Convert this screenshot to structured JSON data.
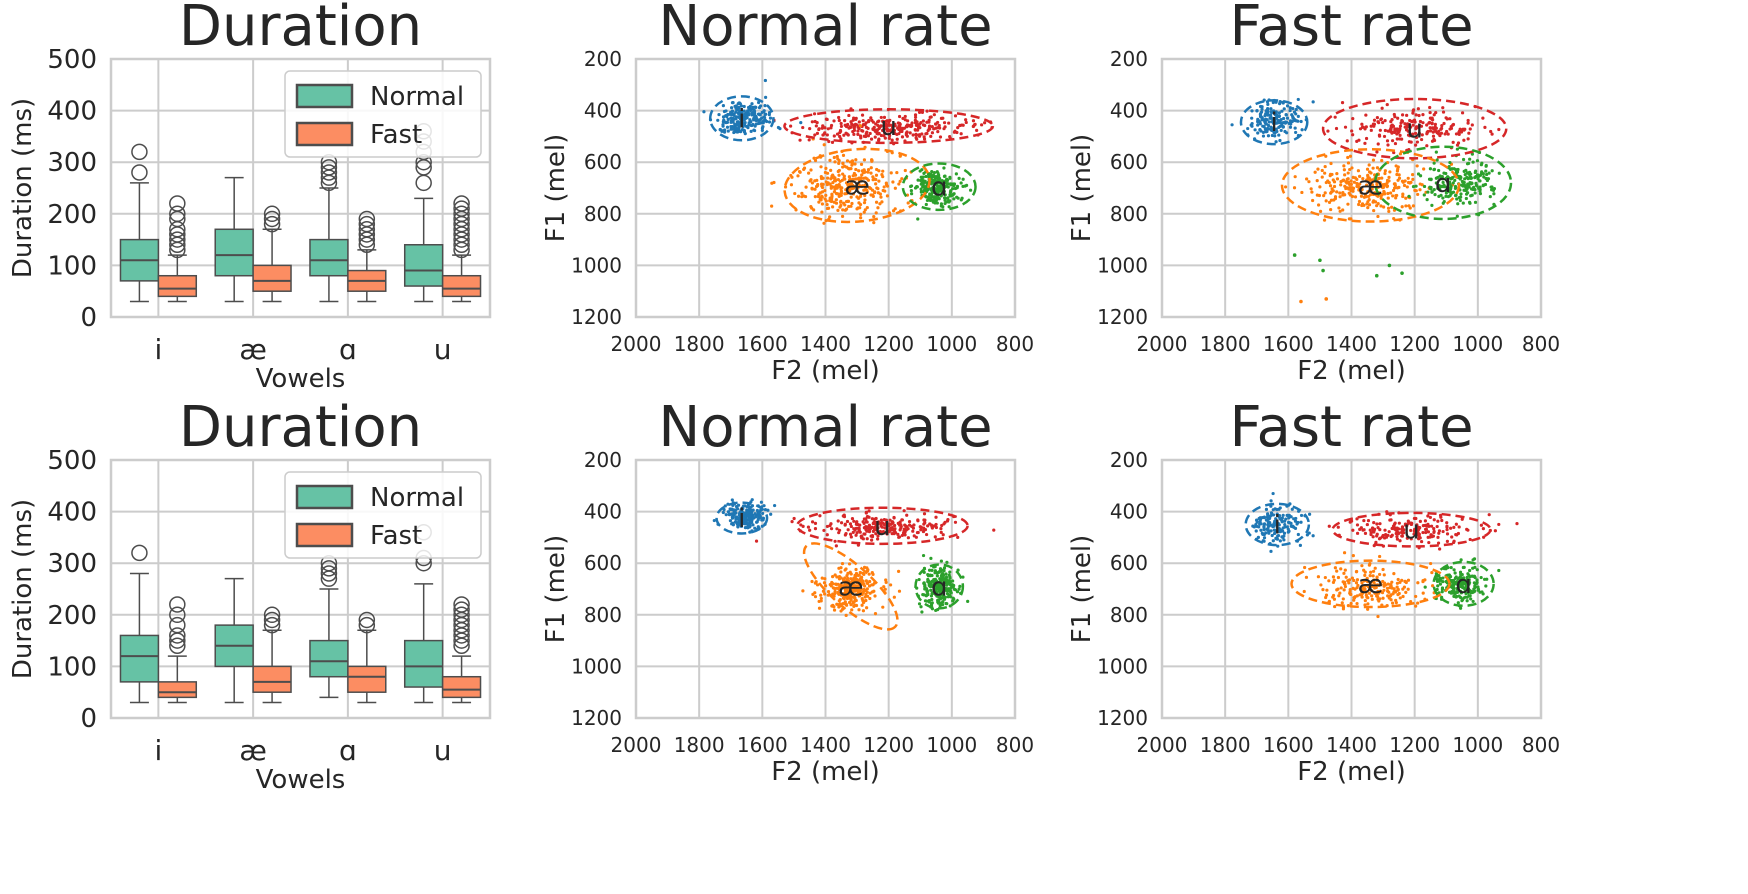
{
  "colors": {
    "normal_box": "#66c2a5",
    "fast_box": "#fc8d62",
    "vowel_i": "#1f77b4",
    "vowel_ae": "#ff7f0e",
    "vowel_a": "#2ca02c",
    "vowel_u": "#d62728",
    "grid": "#cccccc",
    "text": "#262626"
  },
  "chart_data": [
    {
      "type": "box",
      "title": "Duration",
      "xlabel": "Vowels",
      "ylabel": "Duration (ms)",
      "ylim": [
        0,
        500
      ],
      "yticks": [
        "0",
        "100",
        "200",
        "300",
        "400",
        "500"
      ],
      "categories": [
        "i",
        "æ",
        "ɑ",
        "u"
      ],
      "legend": {
        "placement": "top-right",
        "entries": [
          "Normal",
          "Fast"
        ]
      },
      "grid": true,
      "series": [
        {
          "name": "Normal",
          "boxes": [
            {
              "whislo": 30,
              "q1": 70,
              "med": 110,
              "q3": 150,
              "whishi": 260,
              "fliers": [
                280,
                320
              ]
            },
            {
              "whislo": 30,
              "q1": 80,
              "med": 120,
              "q3": 170,
              "whishi": 270,
              "fliers": []
            },
            {
              "whislo": 30,
              "q1": 80,
              "med": 110,
              "q3": 150,
              "whishi": 250,
              "fliers": [
                260,
                270,
                280,
                290,
                300
              ]
            },
            {
              "whislo": 30,
              "q1": 60,
              "med": 90,
              "q3": 140,
              "whishi": 230,
              "fliers": [
                260,
                290,
                300,
                320,
                340,
                360
              ]
            }
          ]
        },
        {
          "name": "Fast",
          "boxes": [
            {
              "whislo": 30,
              "q1": 40,
              "med": 55,
              "q3": 80,
              "whishi": 120,
              "fliers": [
                130,
                140,
                150,
                160,
                170,
                190,
                200,
                220
              ]
            },
            {
              "whislo": 30,
              "q1": 50,
              "med": 70,
              "q3": 100,
              "whishi": 170,
              "fliers": [
                180,
                190,
                200
              ]
            },
            {
              "whislo": 30,
              "q1": 50,
              "med": 70,
              "q3": 90,
              "whishi": 130,
              "fliers": [
                140,
                150,
                160,
                170,
                180,
                190
              ]
            },
            {
              "whislo": 30,
              "q1": 40,
              "med": 55,
              "q3": 80,
              "whishi": 120,
              "fliers": [
                130,
                140,
                150,
                160,
                170,
                180,
                190,
                200,
                210,
                220
              ]
            }
          ]
        }
      ]
    },
    {
      "type": "scatter",
      "title": "Normal rate",
      "xlabel": "F2 (mel)",
      "ylabel": "F1 (mel)",
      "xlim": [
        2000,
        800
      ],
      "ylim": [
        1200,
        200
      ],
      "xticks": [
        "2000",
        "1800",
        "1600",
        "1400",
        "1200",
        "1000",
        "800"
      ],
      "yticks": [
        "200",
        "400",
        "600",
        "800",
        "1000",
        "1200"
      ],
      "grid": true,
      "clusters": [
        {
          "label": "i",
          "color": "#1f77b4",
          "center": [
            1660,
            430
          ],
          "spread": [
            45,
            35
          ],
          "count": 220,
          "ellipse": {
            "cx": 1665,
            "cy": 430,
            "rx": 100,
            "ry": 85,
            "angle": 0
          }
        },
        {
          "label": "u",
          "color": "#d62728",
          "center": [
            1200,
            465
          ],
          "spread": [
            130,
            25
          ],
          "count": 300,
          "ellipse": {
            "cx": 1200,
            "cy": 460,
            "rx": 330,
            "ry": 65,
            "angle": 0
          }
        },
        {
          "label": "æ",
          "color": "#ff7f0e",
          "center": [
            1330,
            690
          ],
          "spread": [
            80,
            60
          ],
          "count": 330,
          "ellipse": {
            "cx": 1300,
            "cy": 690,
            "rx": 230,
            "ry": 140,
            "angle": -5
          }
        },
        {
          "label": "ɑ",
          "color": "#2ca02c",
          "center": [
            1050,
            700
          ],
          "spread": [
            35,
            35
          ],
          "count": 250,
          "ellipse": {
            "cx": 1040,
            "cy": 695,
            "rx": 115,
            "ry": 90,
            "angle": 0
          }
        }
      ]
    },
    {
      "type": "scatter",
      "title": "Fast rate",
      "xlabel": "F2 (mel)",
      "ylabel": "F1 (mel)",
      "xlim": [
        2000,
        800
      ],
      "ylim": [
        1200,
        200
      ],
      "xticks": [
        "2000",
        "1800",
        "1600",
        "1400",
        "1200",
        "1000",
        "800"
      ],
      "yticks": [
        "200",
        "400",
        "600",
        "800",
        "1000",
        "1200"
      ],
      "grid": true,
      "clusters": [
        {
          "label": "i",
          "color": "#1f77b4",
          "center": [
            1650,
            440
          ],
          "spread": [
            40,
            35
          ],
          "count": 180,
          "ellipse": {
            "cx": 1645,
            "cy": 445,
            "rx": 105,
            "ry": 85,
            "angle": 0
          }
        },
        {
          "label": "u",
          "color": "#d62728",
          "center": [
            1200,
            470
          ],
          "spread": [
            110,
            35
          ],
          "count": 220,
          "ellipse": {
            "cx": 1200,
            "cy": 470,
            "rx": 290,
            "ry": 115,
            "angle": 0
          }
        },
        {
          "label": "æ",
          "color": "#ff7f0e",
          "center": [
            1350,
            700
          ],
          "spread": [
            90,
            50
          ],
          "count": 280,
          "ellipse": {
            "cx": 1340,
            "cy": 690,
            "rx": 280,
            "ry": 140,
            "angle": 0
          }
        },
        {
          "label": "ɑ",
          "color": "#2ca02c",
          "center": [
            1060,
            680
          ],
          "spread": [
            55,
            45
          ],
          "count": 230,
          "ellipse": {
            "cx": 1110,
            "cy": 680,
            "rx": 215,
            "ry": 140,
            "angle": 0
          }
        }
      ],
      "outliers": [
        {
          "color": "#2ca02c",
          "points": [
            [
              1500,
              980
            ],
            [
              1490,
              1020
            ],
            [
              1580,
              960
            ],
            [
              1280,
              1000
            ],
            [
              1240,
              1030
            ],
            [
              1320,
              1040
            ]
          ]
        },
        {
          "color": "#ff7f0e",
          "points": [
            [
              1560,
              1140
            ],
            [
              1480,
              1130
            ]
          ]
        }
      ]
    },
    {
      "type": "box",
      "title": "Duration",
      "xlabel": "Vowels",
      "ylabel": "Duration (ms)",
      "ylim": [
        0,
        500
      ],
      "yticks": [
        "0",
        "100",
        "200",
        "300",
        "400",
        "500"
      ],
      "categories": [
        "i",
        "æ",
        "ɑ",
        "u"
      ],
      "legend": {
        "placement": "top-right",
        "entries": [
          "Normal",
          "Fast"
        ]
      },
      "grid": true,
      "series": [
        {
          "name": "Normal",
          "boxes": [
            {
              "whislo": 30,
              "q1": 70,
              "med": 120,
              "q3": 160,
              "whishi": 280,
              "fliers": [
                320
              ]
            },
            {
              "whislo": 30,
              "q1": 100,
              "med": 140,
              "q3": 180,
              "whishi": 270,
              "fliers": []
            },
            {
              "whislo": 40,
              "q1": 80,
              "med": 110,
              "q3": 150,
              "whishi": 250,
              "fliers": [
                270,
                280,
                290,
                300
              ]
            },
            {
              "whislo": 30,
              "q1": 60,
              "med": 100,
              "q3": 150,
              "whishi": 260,
              "fliers": [
                300,
                310,
                360
              ]
            }
          ]
        },
        {
          "name": "Fast",
          "boxes": [
            {
              "whislo": 30,
              "q1": 40,
              "med": 50,
              "q3": 70,
              "whishi": 120,
              "fliers": [
                140,
                150,
                160,
                180,
                200,
                220
              ]
            },
            {
              "whislo": 30,
              "q1": 50,
              "med": 70,
              "q3": 100,
              "whishi": 170,
              "fliers": [
                180,
                190,
                200
              ]
            },
            {
              "whislo": 30,
              "q1": 50,
              "med": 80,
              "q3": 100,
              "whishi": 170,
              "fliers": [
                180,
                190
              ]
            },
            {
              "whislo": 30,
              "q1": 40,
              "med": 55,
              "q3": 80,
              "whishi": 120,
              "fliers": [
                140,
                150,
                160,
                170,
                180,
                190,
                200,
                210,
                220
              ]
            }
          ]
        }
      ]
    },
    {
      "type": "scatter",
      "title": "Normal rate",
      "xlabel": "F2 (mel)",
      "ylabel": "F1 (mel)",
      "xlim": [
        2000,
        800
      ],
      "ylim": [
        1200,
        200
      ],
      "xticks": [
        "2000",
        "1800",
        "1600",
        "1400",
        "1200",
        "1000",
        "800"
      ],
      "yticks": [
        "200",
        "400",
        "600",
        "800",
        "1000",
        "1200"
      ],
      "grid": true,
      "clusters": [
        {
          "label": "i",
          "color": "#1f77b4",
          "center": [
            1655,
            420
          ],
          "spread": [
            35,
            25
          ],
          "count": 200,
          "ellipse": {
            "cx": 1665,
            "cy": 425,
            "rx": 80,
            "ry": 60,
            "angle": 0
          }
        },
        {
          "label": "u",
          "color": "#d62728",
          "center": [
            1220,
            460
          ],
          "spread": [
            110,
            25
          ],
          "count": 240,
          "ellipse": {
            "cx": 1220,
            "cy": 455,
            "rx": 270,
            "ry": 70,
            "angle": 0
          }
        },
        {
          "label": "æ",
          "color": "#ff7f0e",
          "center": [
            1320,
            700
          ],
          "spread": [
            50,
            40
          ],
          "count": 280,
          "ellipse": {
            "cx": 1320,
            "cy": 690,
            "rx": 190,
            "ry": 80,
            "angle": 42
          }
        },
        {
          "label": "ɑ",
          "color": "#2ca02c",
          "center": [
            1040,
            690
          ],
          "spread": [
            30,
            35
          ],
          "count": 240,
          "ellipse": {
            "cx": 1040,
            "cy": 690,
            "rx": 75,
            "ry": 85,
            "angle": 0
          }
        }
      ]
    },
    {
      "type": "scatter",
      "title": "Fast rate",
      "xlabel": "F2 (mel)",
      "ylabel": "F1 (mel)",
      "xlim": [
        2000,
        800
      ],
      "ylim": [
        1200,
        200
      ],
      "xticks": [
        "2000",
        "1800",
        "1600",
        "1400",
        "1200",
        "1000",
        "800"
      ],
      "yticks": [
        "200",
        "400",
        "600",
        "800",
        "1000",
        "1200"
      ],
      "grid": true,
      "clusters": [
        {
          "label": "i",
          "color": "#1f77b4",
          "center": [
            1640,
            450
          ],
          "spread": [
            40,
            35
          ],
          "count": 160,
          "ellipse": {
            "cx": 1635,
            "cy": 450,
            "rx": 100,
            "ry": 80,
            "angle": 0
          }
        },
        {
          "label": "u",
          "color": "#d62728",
          "center": [
            1210,
            470
          ],
          "spread": [
            100,
            25
          ],
          "count": 180,
          "ellipse": {
            "cx": 1210,
            "cy": 470,
            "rx": 250,
            "ry": 65,
            "angle": 0
          }
        },
        {
          "label": "æ",
          "color": "#ff7f0e",
          "center": [
            1340,
            700
          ],
          "spread": [
            80,
            40
          ],
          "count": 220,
          "ellipse": {
            "cx": 1340,
            "cy": 680,
            "rx": 250,
            "ry": 90,
            "angle": 0
          }
        },
        {
          "label": "ɑ",
          "color": "#2ca02c",
          "center": [
            1060,
            680
          ],
          "spread": [
            35,
            35
          ],
          "count": 200,
          "ellipse": {
            "cx": 1045,
            "cy": 680,
            "rx": 95,
            "ry": 85,
            "angle": 0
          }
        }
      ]
    }
  ]
}
